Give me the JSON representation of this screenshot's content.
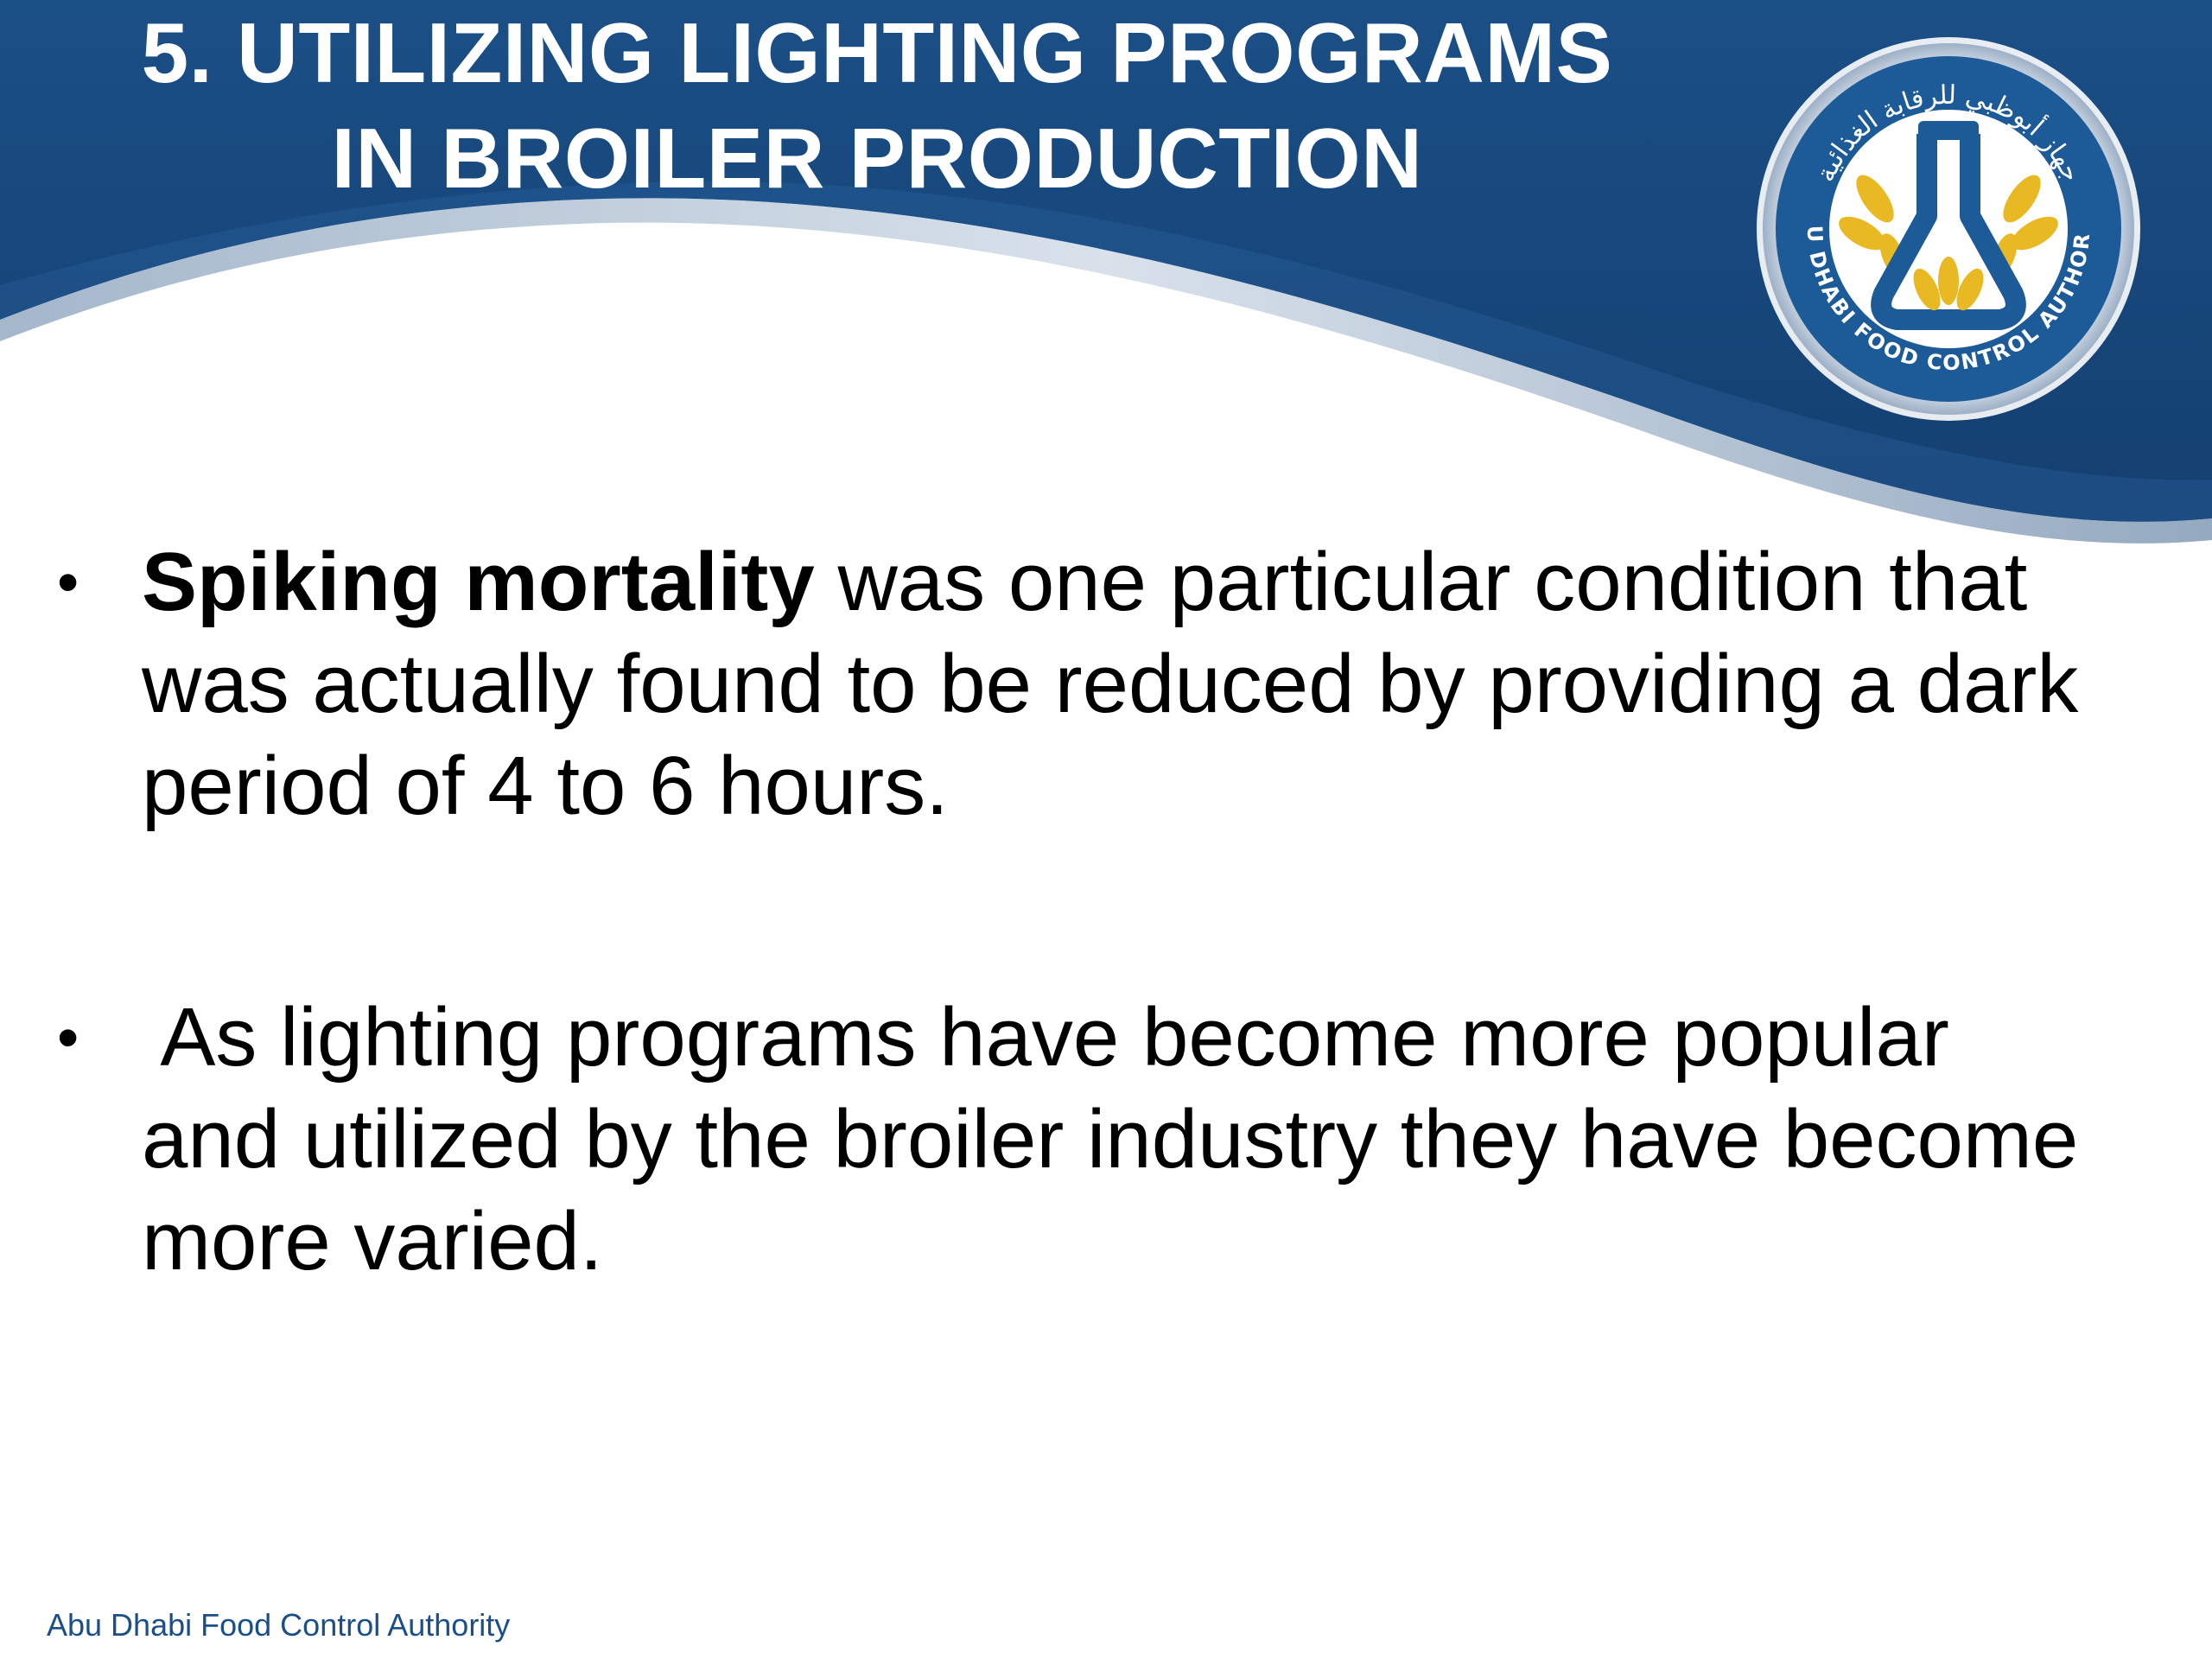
{
  "slide": {
    "title_lines": [
      "5. UTILIZING LIGHTING PROGRAMS",
      "IN BROILER PRODUCTION"
    ],
    "colors": {
      "header_blue": "#1a4f86",
      "header_dark": "#123a66",
      "accent_gold": "#e8b923",
      "footer_text": "#1b4f8a"
    }
  },
  "logo": {
    "arabic_text": "جهاز أبوظبي للرقابة الغذائية",
    "english_text": "ABU DHABI FOOD CONTROL AUTHORITY",
    "icon": "flask-wheat-emblem-icon"
  },
  "bullets": [
    {
      "bold_lead": "Spiking mortality",
      "line1_rest": " was one particular condition that",
      "line2": "was actually found to be reduced by providing a dark",
      "line3": "period of 4 to 6 hours."
    },
    {
      "line1": " As lighting programs have become more popular",
      "line2": "and utilized by the broiler industry they have become",
      "line3": "more varied."
    }
  ],
  "footer": {
    "text": "Abu Dhabi Food Control Authority"
  }
}
